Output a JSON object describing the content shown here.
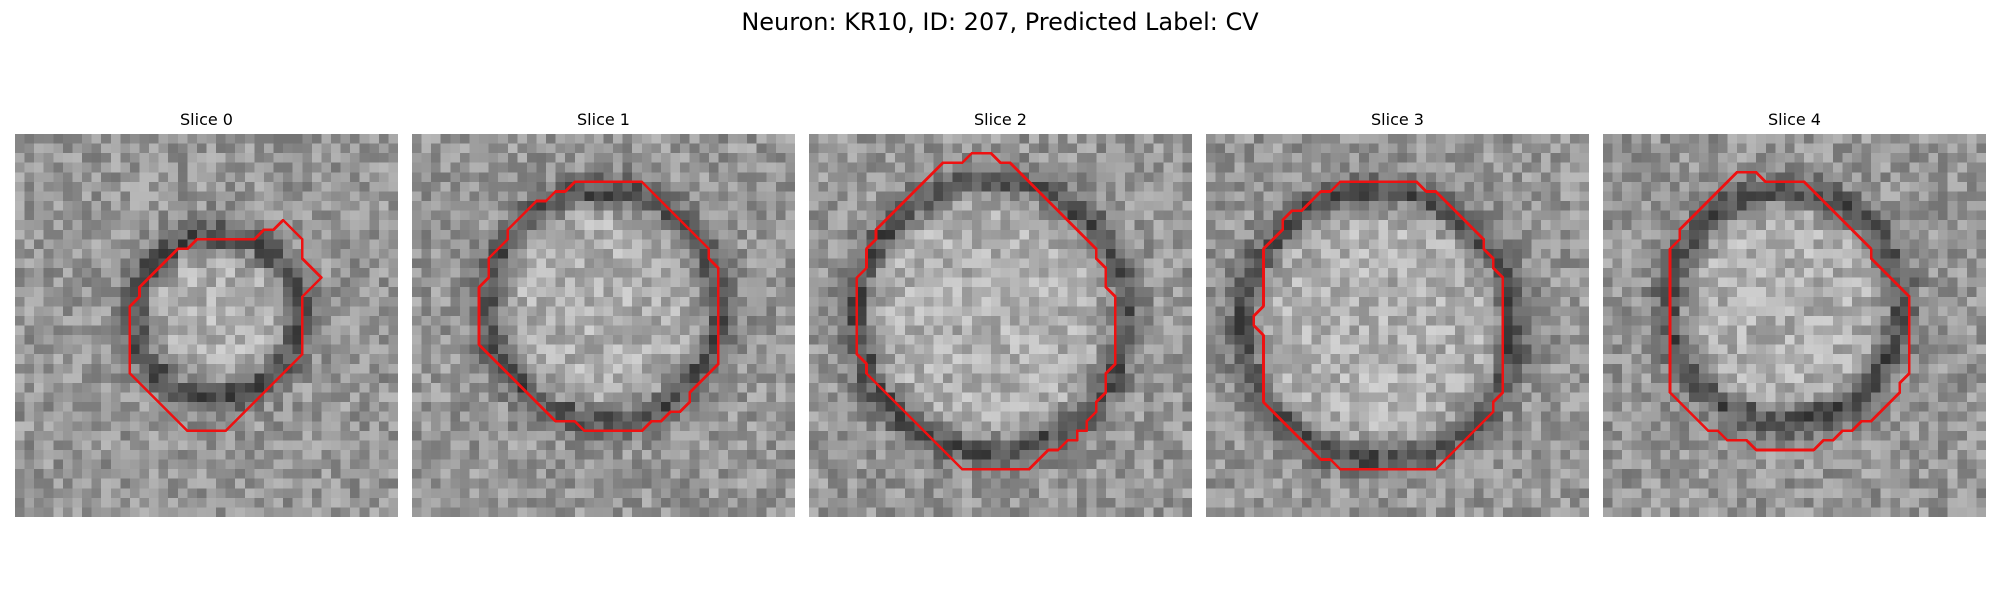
{
  "figure": {
    "title": "Neuron: KR10, ID: 207, Predicted Label: CV",
    "outline_color": "#ee1111",
    "colormap": "grayscale"
  },
  "panels": [
    {
      "title": "Slice 0",
      "outline": [
        [
          28.0,
          9.0
        ],
        [
          29.0,
          10.0
        ],
        [
          30.0,
          11.0
        ],
        [
          30.0,
          12.0
        ],
        [
          30.0,
          13.0
        ],
        [
          31.0,
          14.0
        ],
        [
          32.0,
          15.0
        ],
        [
          31.0,
          16.0
        ],
        [
          30.0,
          17.0
        ],
        [
          30.0,
          18.0
        ],
        [
          30.0,
          19.0
        ],
        [
          30.0,
          20.0
        ],
        [
          30.0,
          21.0
        ],
        [
          30.0,
          22.0
        ],
        [
          30.0,
          23.0
        ],
        [
          29.0,
          24.0
        ],
        [
          28.0,
          25.0
        ],
        [
          27.0,
          26.0
        ],
        [
          26.0,
          27.0
        ],
        [
          25.0,
          28.0
        ],
        [
          24.0,
          29.0
        ],
        [
          23.0,
          30.0
        ],
        [
          22.0,
          31.0
        ],
        [
          21.0,
          31.0
        ],
        [
          20.0,
          31.0
        ],
        [
          19.0,
          31.0
        ],
        [
          18.0,
          31.0
        ],
        [
          17.0,
          30.0
        ],
        [
          16.0,
          29.0
        ],
        [
          15.0,
          28.0
        ],
        [
          14.0,
          27.0
        ],
        [
          13.0,
          26.0
        ],
        [
          12.0,
          25.0
        ],
        [
          12.0,
          24.0
        ],
        [
          12.0,
          23.0
        ],
        [
          12.0,
          22.0
        ],
        [
          12.0,
          21.0
        ],
        [
          12.0,
          20.0
        ],
        [
          12.0,
          19.0
        ],
        [
          12.0,
          18.0
        ],
        [
          13.0,
          17.0
        ],
        [
          13.0,
          16.0
        ],
        [
          14.0,
          15.0
        ],
        [
          15.0,
          14.0
        ],
        [
          16.0,
          13.0
        ],
        [
          17.0,
          12.0
        ],
        [
          18.0,
          12.0
        ],
        [
          19.0,
          11.0
        ],
        [
          20.0,
          11.0
        ],
        [
          21.0,
          11.0
        ],
        [
          22.0,
          11.0
        ],
        [
          23.0,
          11.0
        ],
        [
          24.0,
          11.0
        ],
        [
          25.0,
          11.0
        ],
        [
          26.0,
          10.0
        ],
        [
          27.0,
          10.0
        ]
      ]
    },
    {
      "title": "Slice 1",
      "outline": [
        [
          21.0,
          5.0
        ],
        [
          22.0,
          5.0
        ],
        [
          23.0,
          5.0
        ],
        [
          24.0,
          5.0
        ],
        [
          25.0,
          6.0
        ],
        [
          26.0,
          7.0
        ],
        [
          27.0,
          8.0
        ],
        [
          28.0,
          9.0
        ],
        [
          29.0,
          10.0
        ],
        [
          30.0,
          11.0
        ],
        [
          31.0,
          12.0
        ],
        [
          31.0,
          13.0
        ],
        [
          32.0,
          14.0
        ],
        [
          32.0,
          15.0
        ],
        [
          32.0,
          16.0
        ],
        [
          32.0,
          17.0
        ],
        [
          32.0,
          18.0
        ],
        [
          32.0,
          19.0
        ],
        [
          32.0,
          20.0
        ],
        [
          32.0,
          21.0
        ],
        [
          32.0,
          22.0
        ],
        [
          32.0,
          23.0
        ],
        [
          32.0,
          24.0
        ],
        [
          31.0,
          25.0
        ],
        [
          30.0,
          26.0
        ],
        [
          29.0,
          27.0
        ],
        [
          29.0,
          28.0
        ],
        [
          28.0,
          29.0
        ],
        [
          27.0,
          29.0
        ],
        [
          26.0,
          30.0
        ],
        [
          25.0,
          30.0
        ],
        [
          24.0,
          31.0
        ],
        [
          23.0,
          31.0
        ],
        [
          22.0,
          31.0
        ],
        [
          21.0,
          31.0
        ],
        [
          20.0,
          31.0
        ],
        [
          19.0,
          31.0
        ],
        [
          18.0,
          31.0
        ],
        [
          17.0,
          30.0
        ],
        [
          16.0,
          30.0
        ],
        [
          15.0,
          30.0
        ],
        [
          14.0,
          29.0
        ],
        [
          13.0,
          28.0
        ],
        [
          12.0,
          27.0
        ],
        [
          11.0,
          26.0
        ],
        [
          10.0,
          25.0
        ],
        [
          9.0,
          24.0
        ],
        [
          8.0,
          23.0
        ],
        [
          7.0,
          22.0
        ],
        [
          7.0,
          21.0
        ],
        [
          7.0,
          20.0
        ],
        [
          7.0,
          19.0
        ],
        [
          7.0,
          18.0
        ],
        [
          7.0,
          17.0
        ],
        [
          7.0,
          16.0
        ],
        [
          8.0,
          15.0
        ],
        [
          8.0,
          14.0
        ],
        [
          8.0,
          13.0
        ],
        [
          9.0,
          12.0
        ],
        [
          10.0,
          11.0
        ],
        [
          10.0,
          10.0
        ],
        [
          11.0,
          9.0
        ],
        [
          12.0,
          8.0
        ],
        [
          13.0,
          7.0
        ],
        [
          14.0,
          7.0
        ],
        [
          15.0,
          6.0
        ],
        [
          16.0,
          6.0
        ],
        [
          17.0,
          5.0
        ],
        [
          18.0,
          5.0
        ],
        [
          19.0,
          5.0
        ],
        [
          20.0,
          5.0
        ]
      ]
    },
    {
      "title": "Slice 2",
      "outline": [
        [
          18.0,
          2.0
        ],
        [
          19.0,
          2.0
        ],
        [
          20.0,
          3.0
        ],
        [
          21.0,
          3.0
        ],
        [
          22.0,
          4.0
        ],
        [
          23.0,
          5.0
        ],
        [
          24.0,
          6.0
        ],
        [
          25.0,
          7.0
        ],
        [
          26.0,
          8.0
        ],
        [
          27.0,
          9.0
        ],
        [
          28.0,
          10.0
        ],
        [
          29.0,
          11.0
        ],
        [
          30.0,
          12.0
        ],
        [
          30.0,
          13.0
        ],
        [
          31.0,
          14.0
        ],
        [
          31.0,
          15.0
        ],
        [
          31.0,
          16.0
        ],
        [
          32.0,
          17.0
        ],
        [
          32.0,
          18.0
        ],
        [
          32.0,
          19.0
        ],
        [
          32.0,
          20.0
        ],
        [
          32.0,
          21.0
        ],
        [
          32.0,
          22.0
        ],
        [
          32.0,
          23.0
        ],
        [
          32.0,
          24.0
        ],
        [
          31.0,
          25.0
        ],
        [
          31.0,
          26.0
        ],
        [
          31.0,
          27.0
        ],
        [
          30.0,
          28.0
        ],
        [
          30.0,
          29.0
        ],
        [
          29.0,
          30.0
        ],
        [
          29.0,
          31.0
        ],
        [
          28.0,
          31.0
        ],
        [
          28.0,
          32.0
        ],
        [
          27.0,
          32.0
        ],
        [
          26.0,
          33.0
        ],
        [
          25.0,
          33.0
        ],
        [
          24.0,
          34.0
        ],
        [
          23.0,
          35.0
        ],
        [
          22.0,
          35.0
        ],
        [
          21.0,
          35.0
        ],
        [
          20.0,
          35.0
        ],
        [
          19.0,
          35.0
        ],
        [
          18.0,
          35.0
        ],
        [
          17.0,
          35.0
        ],
        [
          16.0,
          35.0
        ],
        [
          15.0,
          34.0
        ],
        [
          14.0,
          33.0
        ],
        [
          13.0,
          32.0
        ],
        [
          12.0,
          31.0
        ],
        [
          11.0,
          30.0
        ],
        [
          10.0,
          29.0
        ],
        [
          9.0,
          28.0
        ],
        [
          8.0,
          27.0
        ],
        [
          7.0,
          26.0
        ],
        [
          6.0,
          25.0
        ],
        [
          6.0,
          24.0
        ],
        [
          5.0,
          23.0
        ],
        [
          5.0,
          22.0
        ],
        [
          5.0,
          21.0
        ],
        [
          5.0,
          20.0
        ],
        [
          5.0,
          19.0
        ],
        [
          5.0,
          18.0
        ],
        [
          5.0,
          17.0
        ],
        [
          5.0,
          16.0
        ],
        [
          5.0,
          15.0
        ],
        [
          6.0,
          14.0
        ],
        [
          6.0,
          13.0
        ],
        [
          6.0,
          12.0
        ],
        [
          7.0,
          11.0
        ],
        [
          7.0,
          10.0
        ],
        [
          8.0,
          9.0
        ],
        [
          9.0,
          8.0
        ],
        [
          10.0,
          7.0
        ],
        [
          11.0,
          6.0
        ],
        [
          12.0,
          5.0
        ],
        [
          13.0,
          4.0
        ],
        [
          14.0,
          3.0
        ],
        [
          15.0,
          3.0
        ],
        [
          16.0,
          3.0
        ],
        [
          17.0,
          2.0
        ]
      ]
    },
    {
      "title": "Slice 3",
      "outline": [
        [
          15.0,
          5.0
        ],
        [
          16.0,
          5.0
        ],
        [
          17.0,
          5.0
        ],
        [
          18.0,
          5.0
        ],
        [
          19.0,
          5.0
        ],
        [
          20.0,
          5.0
        ],
        [
          21.0,
          5.0
        ],
        [
          22.0,
          5.0
        ],
        [
          23.0,
          6.0
        ],
        [
          24.0,
          6.0
        ],
        [
          25.0,
          7.0
        ],
        [
          26.0,
          8.0
        ],
        [
          27.0,
          9.0
        ],
        [
          28.0,
          10.0
        ],
        [
          29.0,
          11.0
        ],
        [
          29.0,
          12.0
        ],
        [
          30.0,
          13.0
        ],
        [
          30.0,
          14.0
        ],
        [
          31.0,
          15.0
        ],
        [
          31.0,
          16.0
        ],
        [
          31.0,
          17.0
        ],
        [
          31.0,
          18.0
        ],
        [
          31.0,
          19.0
        ],
        [
          31.0,
          20.0
        ],
        [
          31.0,
          21.0
        ],
        [
          31.0,
          22.0
        ],
        [
          31.0,
          23.0
        ],
        [
          31.0,
          24.0
        ],
        [
          31.0,
          25.0
        ],
        [
          31.0,
          26.0
        ],
        [
          31.0,
          27.0
        ],
        [
          30.0,
          28.0
        ],
        [
          30.0,
          29.0
        ],
        [
          29.0,
          30.0
        ],
        [
          28.0,
          31.0
        ],
        [
          27.0,
          32.0
        ],
        [
          26.0,
          33.0
        ],
        [
          25.0,
          34.0
        ],
        [
          24.0,
          35.0
        ],
        [
          23.0,
          35.0
        ],
        [
          22.0,
          35.0
        ],
        [
          21.0,
          35.0
        ],
        [
          20.0,
          35.0
        ],
        [
          19.0,
          35.0
        ],
        [
          18.0,
          35.0
        ],
        [
          17.0,
          35.0
        ],
        [
          16.0,
          35.0
        ],
        [
          15.0,
          35.0
        ],
        [
          14.0,
          35.0
        ],
        [
          13.0,
          34.0
        ],
        [
          12.0,
          34.0
        ],
        [
          11.0,
          33.0
        ],
        [
          10.0,
          32.0
        ],
        [
          9.0,
          31.0
        ],
        [
          8.0,
          30.0
        ],
        [
          7.0,
          29.0
        ],
        [
          6.0,
          28.0
        ],
        [
          6.0,
          27.0
        ],
        [
          6.0,
          26.0
        ],
        [
          6.0,
          25.0
        ],
        [
          6.0,
          24.0
        ],
        [
          6.0,
          23.0
        ],
        [
          6.0,
          22.0
        ],
        [
          6.0,
          21.0
        ],
        [
          5.0,
          20.0
        ],
        [
          5.0,
          19.0
        ],
        [
          6.0,
          18.0
        ],
        [
          6.0,
          17.0
        ],
        [
          6.0,
          16.0
        ],
        [
          6.0,
          15.0
        ],
        [
          6.0,
          14.0
        ],
        [
          6.0,
          13.0
        ],
        [
          6.0,
          12.0
        ],
        [
          7.0,
          11.0
        ],
        [
          8.0,
          10.0
        ],
        [
          8.0,
          9.0
        ],
        [
          9.0,
          8.0
        ],
        [
          10.0,
          8.0
        ],
        [
          11.0,
          7.0
        ],
        [
          12.0,
          6.0
        ],
        [
          13.0,
          6.0
        ],
        [
          14.0,
          5.0
        ]
      ]
    },
    {
      "title": "Slice 4",
      "outline": [
        [
          15.0,
          4.0
        ],
        [
          16.0,
          4.0
        ],
        [
          17.0,
          5.0
        ],
        [
          18.0,
          5.0
        ],
        [
          19.0,
          5.0
        ],
        [
          20.0,
          5.0
        ],
        [
          21.0,
          5.0
        ],
        [
          22.0,
          6.0
        ],
        [
          23.0,
          7.0
        ],
        [
          24.0,
          8.0
        ],
        [
          25.0,
          9.0
        ],
        [
          26.0,
          10.0
        ],
        [
          27.0,
          11.0
        ],
        [
          28.0,
          12.0
        ],
        [
          28.0,
          13.0
        ],
        [
          29.0,
          14.0
        ],
        [
          30.0,
          15.0
        ],
        [
          31.0,
          16.0
        ],
        [
          32.0,
          17.0
        ],
        [
          32.0,
          18.0
        ],
        [
          32.0,
          19.0
        ],
        [
          32.0,
          20.0
        ],
        [
          32.0,
          21.0
        ],
        [
          32.0,
          22.0
        ],
        [
          32.0,
          23.0
        ],
        [
          32.0,
          24.0
        ],
        [
          32.0,
          25.0
        ],
        [
          31.0,
          26.0
        ],
        [
          31.0,
          27.0
        ],
        [
          30.0,
          28.0
        ],
        [
          29.0,
          29.0
        ],
        [
          28.0,
          30.0
        ],
        [
          27.0,
          30.0
        ],
        [
          26.0,
          31.0
        ],
        [
          25.0,
          31.0
        ],
        [
          24.0,
          32.0
        ],
        [
          23.0,
          32.0
        ],
        [
          22.0,
          33.0
        ],
        [
          21.0,
          33.0
        ],
        [
          20.0,
          33.0
        ],
        [
          19.0,
          33.0
        ],
        [
          18.0,
          33.0
        ],
        [
          17.0,
          33.0
        ],
        [
          16.0,
          33.0
        ],
        [
          15.0,
          32.0
        ],
        [
          14.0,
          32.0
        ],
        [
          13.0,
          32.0
        ],
        [
          12.0,
          31.0
        ],
        [
          11.0,
          31.0
        ],
        [
          10.0,
          30.0
        ],
        [
          9.0,
          29.0
        ],
        [
          8.0,
          28.0
        ],
        [
          7.0,
          27.0
        ],
        [
          7.0,
          26.0
        ],
        [
          7.0,
          25.0
        ],
        [
          7.0,
          24.0
        ],
        [
          7.0,
          23.0
        ],
        [
          7.0,
          22.0
        ],
        [
          7.0,
          21.0
        ],
        [
          7.0,
          20.0
        ],
        [
          7.0,
          19.0
        ],
        [
          7.0,
          18.0
        ],
        [
          7.0,
          17.0
        ],
        [
          7.0,
          16.0
        ],
        [
          7.0,
          15.0
        ],
        [
          7.0,
          14.0
        ],
        [
          7.0,
          13.0
        ],
        [
          7.0,
          12.0
        ],
        [
          8.0,
          11.0
        ],
        [
          8.0,
          10.0
        ],
        [
          9.0,
          9.0
        ],
        [
          10.0,
          8.0
        ],
        [
          11.0,
          7.0
        ],
        [
          12.0,
          6.0
        ],
        [
          13.0,
          5.0
        ],
        [
          14.0,
          4.0
        ]
      ]
    }
  ]
}
